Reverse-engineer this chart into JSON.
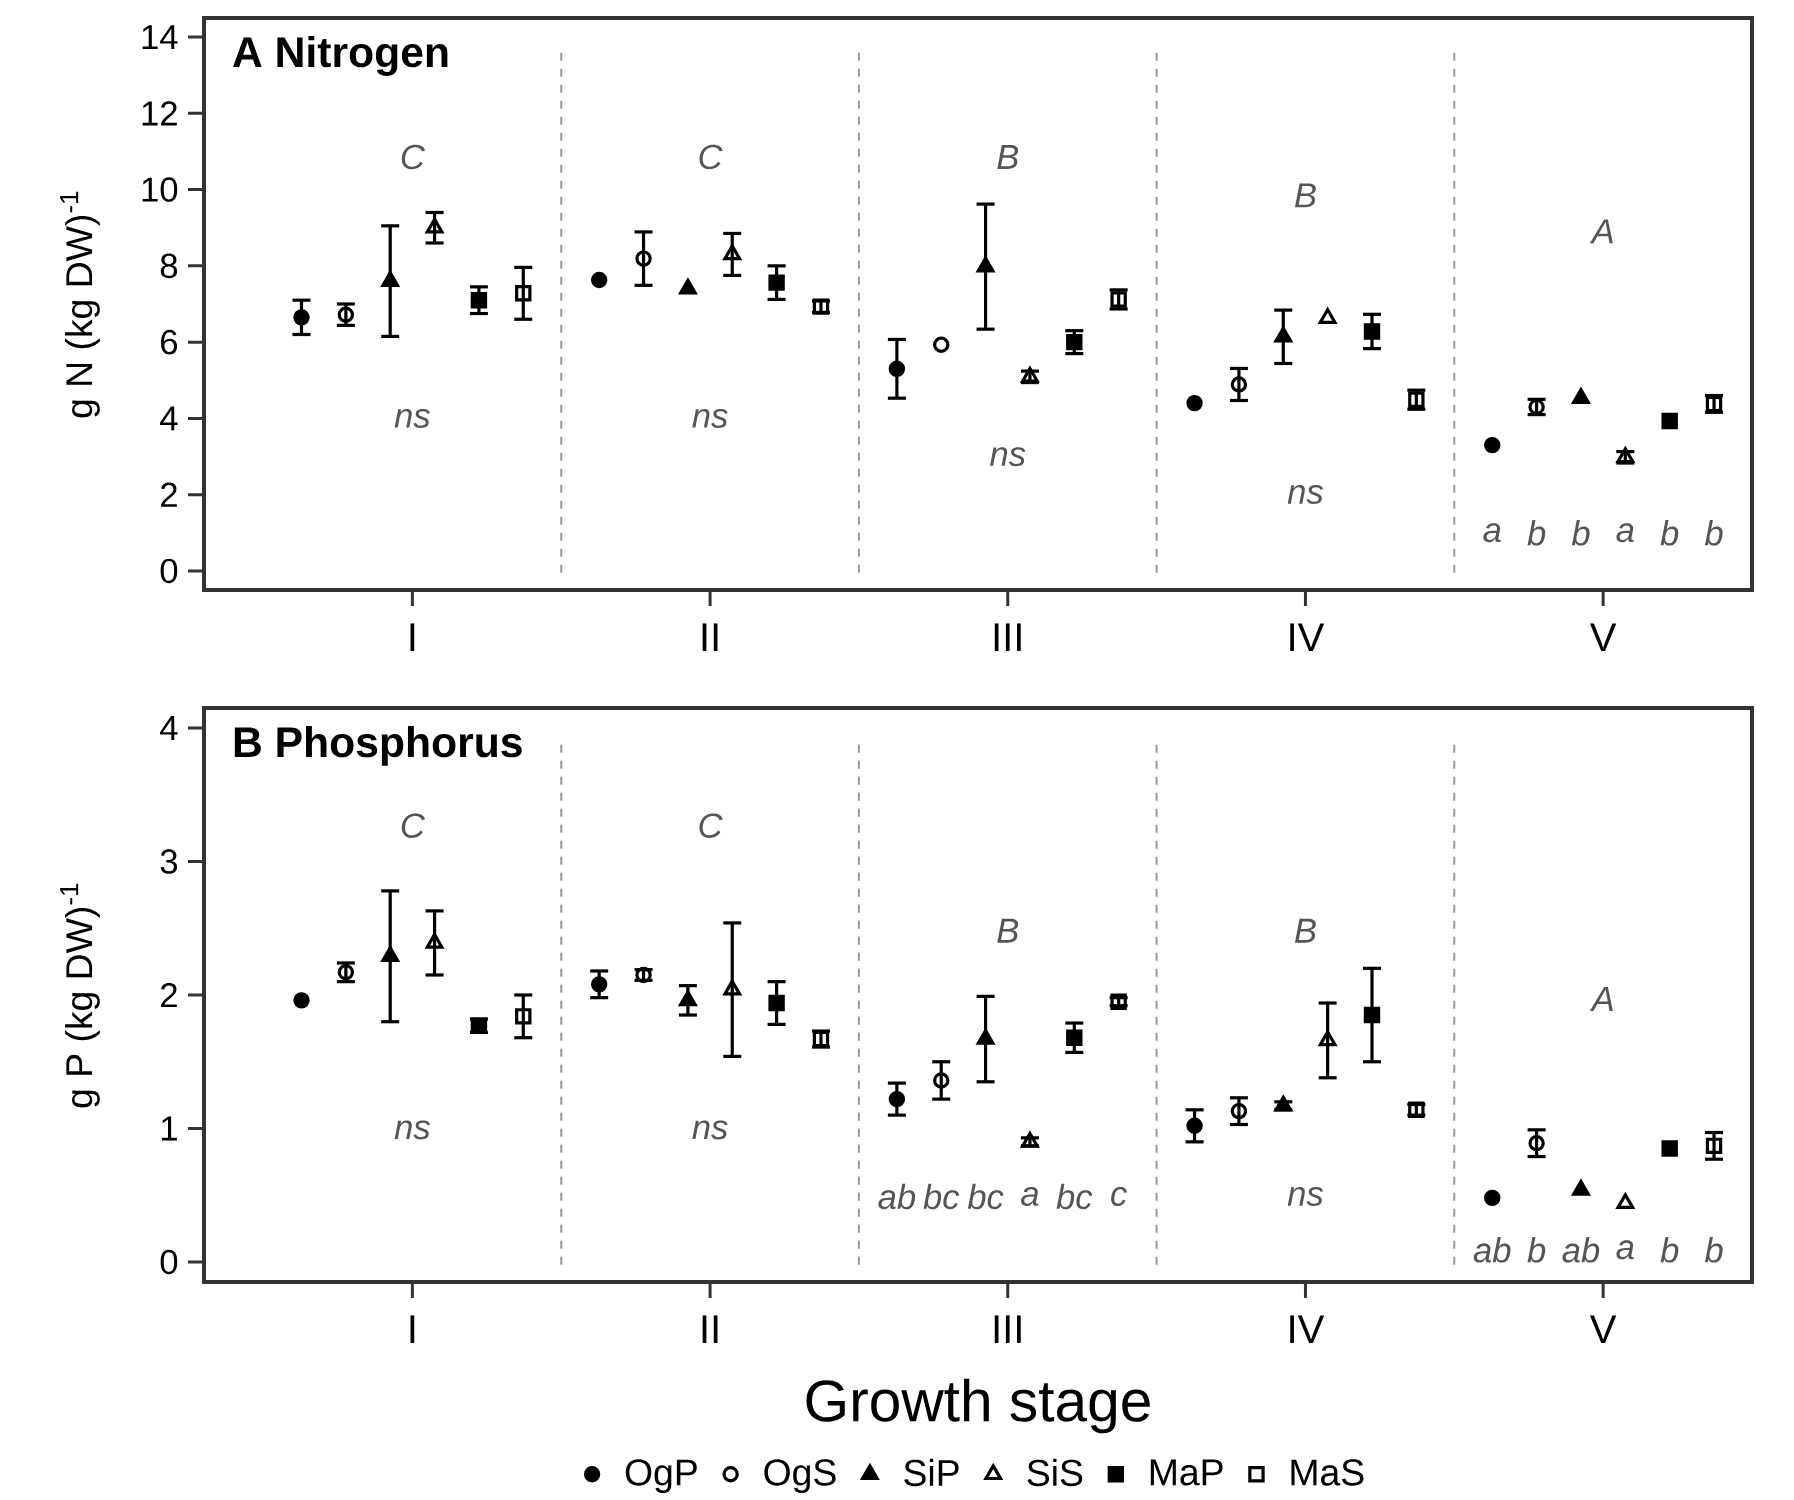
{
  "chart_data": [
    {
      "type": "scatter",
      "title": "A Nitrogen",
      "ylabel": "g N (kg DW)$^{-1}$",
      "categories": [
        "I",
        "II",
        "III",
        "IV",
        "V"
      ],
      "ylim": [
        -0.5,
        14.5
      ],
      "yticks": [
        0,
        2,
        4,
        6,
        8,
        10,
        12,
        14
      ],
      "series": [
        {
          "color": "#000000",
          "marker": "circle",
          "values": [
            6.65,
            7.63,
            5.3,
            4.4,
            3.3
          ],
          "errors": [
            0.45,
            null,
            0.77,
            null,
            null
          ]
        },
        {
          "color": "#000000",
          "marker": "circle",
          "values": [
            6.72,
            8.19,
            5.93,
            4.89,
            4.3
          ],
          "errors": [
            0.28,
            0.7,
            null,
            0.42,
            0.2
          ]
        },
        {
          "color": "#000000",
          "marker": "triangle",
          "values": [
            7.6,
            7.4,
            7.98,
            6.14,
            4.53
          ],
          "errors": [
            1.45,
            null,
            1.64,
            0.7,
            null
          ]
        },
        {
          "color": "#000000",
          "marker": "triangle",
          "values": [
            9.0,
            8.3,
            5.09,
            6.63,
            2.98
          ],
          "errors": [
            0.4,
            0.55,
            0.15,
            null,
            0.15
          ]
        },
        {
          "color": "#000000",
          "marker": "square",
          "values": [
            7.1,
            7.56,
            6.0,
            6.28,
            3.93
          ],
          "errors": [
            0.35,
            0.44,
            0.3,
            0.45,
            null
          ]
        },
        {
          "color": "#000000",
          "marker": "square",
          "values": [
            7.28,
            6.93,
            7.12,
            4.49,
            4.38
          ],
          "errors": [
            0.68,
            0.15,
            0.25,
            0.25,
            0.22
          ]
        }
      ],
      "annotations": [
        "C",
        "ns",
        "C",
        "ns",
        "B",
        "ns",
        "B",
        "ns",
        "A",
        "a",
        "b",
        "b",
        "a",
        "b",
        "b"
      ]
    },
    {
      "type": "scatter",
      "title": "B Phosphorus",
      "ylabel": "g P (kg DW)$^{-1}$",
      "xlabel": "Growth stage",
      "categories": [
        "I",
        "II",
        "III",
        "IV",
        "V"
      ],
      "ylim": [
        -0.15,
        4.15
      ],
      "yticks": [
        0,
        1,
        2,
        3,
        4
      ],
      "legend": "bottom",
      "series": [
        {
          "name": "OgP",
          "color": "#000000",
          "marker": "circle",
          "values": [
            1.96,
            2.08,
            1.22,
            1.02,
            0.48
          ],
          "errors": [
            null,
            0.1,
            0.12,
            0.12,
            null
          ]
        },
        {
          "name": "OgS",
          "color": "#000000",
          "marker": "circle",
          "values": [
            2.17,
            2.15,
            1.36,
            1.13,
            0.89
          ],
          "errors": [
            0.07,
            0.04,
            0.14,
            0.1,
            0.1
          ]
        },
        {
          "name": "SiP",
          "color": "#000000",
          "marker": "triangle",
          "values": [
            2.29,
            1.96,
            1.67,
            1.17,
            0.54
          ],
          "errors": [
            0.49,
            0.11,
            0.32,
            0.03,
            null
          ]
        },
        {
          "name": "SiS",
          "color": "#000000",
          "marker": "triangle",
          "values": [
            2.39,
            2.04,
            0.9,
            1.66,
            0.44
          ],
          "errors": [
            0.24,
            0.5,
            0.03,
            0.28,
            null
          ]
        },
        {
          "name": "MaP",
          "color": "#000000",
          "marker": "square",
          "values": [
            1.77,
            1.94,
            1.68,
            1.85,
            0.85
          ],
          "errors": [
            0.05,
            0.16,
            0.11,
            0.35,
            null
          ]
        },
        {
          "name": "MaS",
          "color": "#000000",
          "marker": "square",
          "values": [
            1.84,
            1.67,
            1.95,
            1.14,
            0.87
          ],
          "errors": [
            0.16,
            0.06,
            0.03,
            0.04,
            0.1
          ]
        }
      ],
      "annotations": [
        "C",
        "ns",
        "C",
        "ns",
        "B",
        "ab",
        "bc",
        "bc",
        "a",
        "bc",
        "c",
        "B",
        "ns",
        "A",
        "ab",
        "b",
        "ab",
        "a",
        "b",
        "b"
      ]
    }
  ]
}
